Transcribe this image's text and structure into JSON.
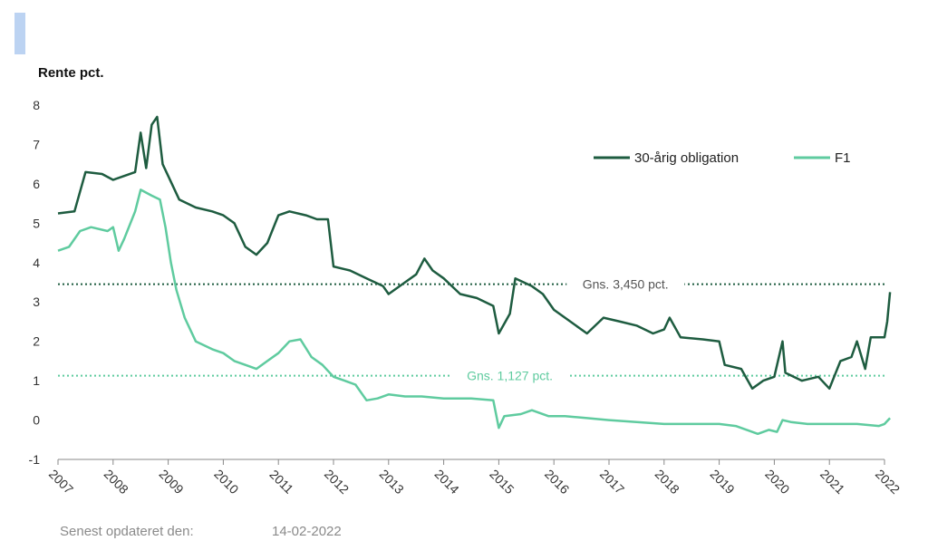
{
  "chart_data": {
    "type": "line",
    "title": "",
    "ylabel": "Rente pct.",
    "xlabel": "",
    "ylim": [
      -1,
      8
    ],
    "xlim": [
      2007,
      2022
    ],
    "yticks": [
      "-1",
      "0",
      "1",
      "2",
      "3",
      "4",
      "5",
      "6",
      "7",
      "8"
    ],
    "xticks": [
      "2007",
      "2008",
      "2009",
      "2010",
      "2011",
      "2012",
      "2013",
      "2014",
      "2015",
      "2016",
      "2017",
      "2018",
      "2019",
      "2020",
      "2021",
      "2022"
    ],
    "grid": false,
    "legend": "top-right",
    "series": [
      {
        "name": "30-årig obligation",
        "color": "#1e5c40",
        "points": [
          [
            2007.0,
            5.25
          ],
          [
            2007.3,
            5.3
          ],
          [
            2007.5,
            6.3
          ],
          [
            2007.8,
            6.25
          ],
          [
            2008.0,
            6.1
          ],
          [
            2008.2,
            6.2
          ],
          [
            2008.4,
            6.3
          ],
          [
            2008.5,
            7.3
          ],
          [
            2008.6,
            6.4
          ],
          [
            2008.7,
            7.5
          ],
          [
            2008.8,
            7.7
          ],
          [
            2008.9,
            6.5
          ],
          [
            2009.0,
            6.2
          ],
          [
            2009.2,
            5.6
          ],
          [
            2009.5,
            5.4
          ],
          [
            2009.8,
            5.3
          ],
          [
            2010.0,
            5.2
          ],
          [
            2010.2,
            5.0
          ],
          [
            2010.4,
            4.4
          ],
          [
            2010.6,
            4.2
          ],
          [
            2010.8,
            4.5
          ],
          [
            2011.0,
            5.2
          ],
          [
            2011.2,
            5.3
          ],
          [
            2011.5,
            5.2
          ],
          [
            2011.7,
            5.1
          ],
          [
            2011.9,
            5.1
          ],
          [
            2012.0,
            3.9
          ],
          [
            2012.3,
            3.8
          ],
          [
            2012.6,
            3.6
          ],
          [
            2012.9,
            3.4
          ],
          [
            2013.0,
            3.2
          ],
          [
            2013.3,
            3.5
          ],
          [
            2013.5,
            3.7
          ],
          [
            2013.65,
            4.1
          ],
          [
            2013.8,
            3.8
          ],
          [
            2014.0,
            3.6
          ],
          [
            2014.3,
            3.2
          ],
          [
            2014.6,
            3.1
          ],
          [
            2014.9,
            2.9
          ],
          [
            2015.0,
            2.2
          ],
          [
            2015.2,
            2.7
          ],
          [
            2015.3,
            3.6
          ],
          [
            2015.6,
            3.4
          ],
          [
            2015.8,
            3.2
          ],
          [
            2016.0,
            2.8
          ],
          [
            2016.3,
            2.5
          ],
          [
            2016.6,
            2.2
          ],
          [
            2016.9,
            2.6
          ],
          [
            2017.2,
            2.5
          ],
          [
            2017.5,
            2.4
          ],
          [
            2017.8,
            2.2
          ],
          [
            2018.0,
            2.3
          ],
          [
            2018.1,
            2.6
          ],
          [
            2018.3,
            2.1
          ],
          [
            2018.7,
            2.05
          ],
          [
            2019.0,
            2.0
          ],
          [
            2019.1,
            1.4
          ],
          [
            2019.4,
            1.3
          ],
          [
            2019.6,
            0.8
          ],
          [
            2019.8,
            1.0
          ],
          [
            2020.0,
            1.1
          ],
          [
            2020.15,
            2.0
          ],
          [
            2020.2,
            1.2
          ],
          [
            2020.5,
            1.0
          ],
          [
            2020.8,
            1.1
          ],
          [
            2021.0,
            0.8
          ],
          [
            2021.2,
            1.5
          ],
          [
            2021.4,
            1.6
          ],
          [
            2021.5,
            2.0
          ],
          [
            2021.65,
            1.3
          ],
          [
            2021.75,
            2.1
          ],
          [
            2022.0,
            2.1
          ],
          [
            2022.05,
            2.5
          ],
          [
            2022.1,
            3.25
          ]
        ]
      },
      {
        "name": "F1",
        "color": "#5fcb9f",
        "points": [
          [
            2007.0,
            4.3
          ],
          [
            2007.2,
            4.4
          ],
          [
            2007.4,
            4.8
          ],
          [
            2007.6,
            4.9
          ],
          [
            2007.9,
            4.8
          ],
          [
            2008.0,
            4.9
          ],
          [
            2008.1,
            4.3
          ],
          [
            2008.2,
            4.6
          ],
          [
            2008.4,
            5.3
          ],
          [
            2008.5,
            5.85
          ],
          [
            2008.7,
            5.7
          ],
          [
            2008.85,
            5.6
          ],
          [
            2008.95,
            4.9
          ],
          [
            2009.05,
            4.0
          ],
          [
            2009.15,
            3.3
          ],
          [
            2009.3,
            2.6
          ],
          [
            2009.5,
            2.0
          ],
          [
            2009.8,
            1.8
          ],
          [
            2010.0,
            1.7
          ],
          [
            2010.2,
            1.5
          ],
          [
            2010.4,
            1.4
          ],
          [
            2010.6,
            1.3
          ],
          [
            2010.8,
            1.5
          ],
          [
            2011.0,
            1.7
          ],
          [
            2011.2,
            2.0
          ],
          [
            2011.4,
            2.05
          ],
          [
            2011.6,
            1.6
          ],
          [
            2011.8,
            1.4
          ],
          [
            2012.0,
            1.1
          ],
          [
            2012.2,
            1.0
          ],
          [
            2012.4,
            0.9
          ],
          [
            2012.6,
            0.5
          ],
          [
            2012.8,
            0.55
          ],
          [
            2013.0,
            0.65
          ],
          [
            2013.3,
            0.6
          ],
          [
            2013.6,
            0.6
          ],
          [
            2014.0,
            0.55
          ],
          [
            2014.5,
            0.55
          ],
          [
            2014.9,
            0.5
          ],
          [
            2015.0,
            -0.2
          ],
          [
            2015.1,
            0.1
          ],
          [
            2015.4,
            0.15
          ],
          [
            2015.6,
            0.25
          ],
          [
            2015.9,
            0.1
          ],
          [
            2016.2,
            0.1
          ],
          [
            2016.6,
            0.05
          ],
          [
            2017.0,
            0.0
          ],
          [
            2017.5,
            -0.05
          ],
          [
            2018.0,
            -0.1
          ],
          [
            2018.5,
            -0.1
          ],
          [
            2019.0,
            -0.1
          ],
          [
            2019.3,
            -0.15
          ],
          [
            2019.5,
            -0.25
          ],
          [
            2019.7,
            -0.35
          ],
          [
            2019.9,
            -0.25
          ],
          [
            2020.05,
            -0.3
          ],
          [
            2020.15,
            0.0
          ],
          [
            2020.3,
            -0.05
          ],
          [
            2020.6,
            -0.1
          ],
          [
            2021.0,
            -0.1
          ],
          [
            2021.5,
            -0.1
          ],
          [
            2021.9,
            -0.15
          ],
          [
            2022.0,
            -0.1
          ],
          [
            2022.1,
            0.05
          ]
        ]
      }
    ],
    "reference_lines": [
      {
        "name": "avg-30y",
        "value": 3.45,
        "label": "Gns. 3,450 pct.",
        "color": "#1e5c40"
      },
      {
        "name": "avg-f1",
        "value": 1.127,
        "label": "Gns. 1,127 pct.",
        "color": "#5fcb9f"
      }
    ]
  },
  "footer": {
    "updated_label": "Senest opdateret den:",
    "updated_date": "14-02-2022"
  },
  "colors": {
    "accent": "#bcd3f2",
    "axis": "#888888",
    "text": "#333333"
  }
}
